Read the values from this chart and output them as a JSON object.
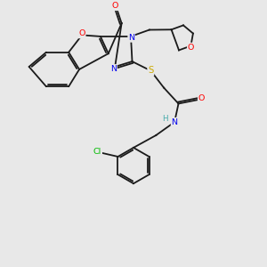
{
  "background_color": "#e8e8e8",
  "bond_color": "#1a1a1a",
  "atom_colors": {
    "O": "#ff0000",
    "N": "#0000ee",
    "S": "#ccaa00",
    "Cl": "#00bb00",
    "H": "#44aaaa",
    "C": "#1a1a1a"
  },
  "figsize": [
    3.0,
    3.0
  ],
  "dpi": 100
}
